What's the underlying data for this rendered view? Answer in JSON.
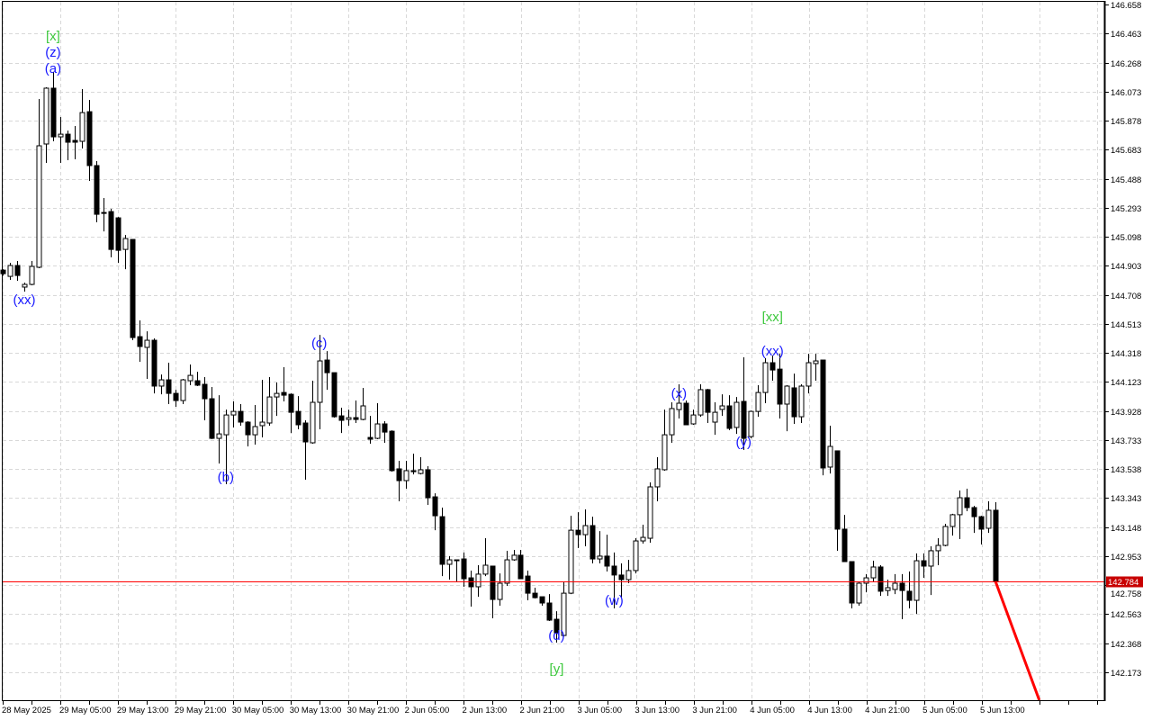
{
  "chart_data": {
    "type": "candlestick",
    "title": "",
    "grid": true,
    "colors": {
      "bull_body": "#ffffff",
      "bear_body": "#000000",
      "outline": "#000000",
      "grid": "#d8d8d8",
      "price_line": "#ff0000",
      "price_tag": "#c80000",
      "wave_label_blue": "#1a1aff",
      "wave_label_green": "#3cc83c",
      "forecast_line": "#ff0000"
    },
    "y_axis": {
      "position": "right",
      "range": [
        141.985,
        146.658
      ],
      "ticks": [
        "146.658",
        "146.463",
        "146.268",
        "146.073",
        "145.878",
        "145.683",
        "145.488",
        "145.293",
        "145.098",
        "144.903",
        "144.708",
        "144.513",
        "144.318",
        "144.123",
        "143.928",
        "143.733",
        "143.538",
        "143.343",
        "143.148",
        "142.953",
        "142.758",
        "142.563",
        "142.368",
        "142.173"
      ]
    },
    "x_axis": {
      "ticks": [
        {
          "bar": 0,
          "label": "28 May 2025"
        },
        {
          "bar": 8,
          "label": "29 May 05:00"
        },
        {
          "bar": 16,
          "label": "29 May 13:00"
        },
        {
          "bar": 24,
          "label": "29 May 21:00"
        },
        {
          "bar": 32,
          "label": "30 May 05:00"
        },
        {
          "bar": 40,
          "label": "30 May 13:00"
        },
        {
          "bar": 48,
          "label": "30 May 21:00"
        },
        {
          "bar": 56,
          "label": "2 Jun 05:00"
        },
        {
          "bar": 64,
          "label": "2 Jun 13:00"
        },
        {
          "bar": 72,
          "label": "2 Jun 21:00"
        },
        {
          "bar": 80,
          "label": "3 Jun 05:00"
        },
        {
          "bar": 88,
          "label": "3 Jun 13:00"
        },
        {
          "bar": 96,
          "label": "3 Jun 21:00"
        },
        {
          "bar": 104,
          "label": "4 Jun 05:00"
        },
        {
          "bar": 112,
          "label": "4 Jun 13:00"
        },
        {
          "bar": 120,
          "label": "4 Jun 21:00"
        },
        {
          "bar": 128,
          "label": "5 Jun 05:00"
        },
        {
          "bar": 136,
          "label": "5 Jun 13:00"
        }
      ]
    },
    "current_price": "142.784",
    "ohlc_fields": [
      "open",
      "high",
      "low",
      "close"
    ],
    "candles": [
      [
        144.874,
        144.88,
        144.838,
        144.85
      ],
      [
        144.832,
        144.923,
        144.808,
        144.905
      ],
      [
        144.905,
        144.935,
        144.802,
        144.838
      ],
      [
        144.76,
        144.79,
        144.73,
        144.778
      ],
      [
        144.778,
        144.935,
        144.772,
        144.899
      ],
      [
        144.893,
        146.023,
        144.887,
        145.709
      ],
      [
        145.721,
        146.102,
        145.594,
        146.096
      ],
      [
        146.096,
        146.204,
        145.739,
        145.769
      ],
      [
        145.769,
        145.902,
        145.594,
        145.787
      ],
      [
        145.787,
        145.811,
        145.612,
        145.733
      ],
      [
        145.745,
        145.842,
        145.618,
        145.733
      ],
      [
        145.739,
        146.09,
        145.691,
        145.932
      ],
      [
        145.938,
        146.017,
        145.473,
        145.576
      ],
      [
        145.576,
        145.606,
        145.195,
        145.249
      ],
      [
        145.255,
        145.358,
        145.134,
        145.261
      ],
      [
        145.267,
        145.286,
        144.96,
        145.013
      ],
      [
        145.225,
        145.231,
        144.923,
        145.007
      ],
      [
        145.013,
        145.11,
        144.88,
        145.086
      ],
      [
        145.08,
        145.08,
        144.403,
        144.421
      ],
      [
        144.427,
        144.536,
        144.258,
        144.361
      ],
      [
        144.355,
        144.463,
        144.143,
        144.403
      ],
      [
        144.403,
        144.415,
        144.046,
        144.095
      ],
      [
        144.095,
        144.173,
        144.04,
        144.137
      ],
      [
        144.137,
        144.252,
        143.974,
        144.046
      ],
      [
        144.046,
        144.07,
        143.956,
        143.998
      ],
      [
        143.998,
        144.143,
        143.974,
        144.137
      ],
      [
        144.131,
        144.24,
        144.101,
        144.167
      ],
      [
        144.131,
        144.191,
        144.095,
        144.101
      ],
      [
        144.107,
        144.155,
        143.865,
        144.01
      ],
      [
        144.01,
        144.089,
        143.738,
        143.744
      ],
      [
        143.744,
        144.034,
        143.575,
        143.774
      ],
      [
        143.768,
        143.937,
        143.436,
        143.901
      ],
      [
        143.901,
        143.992,
        143.817,
        143.925
      ],
      [
        143.925,
        143.974,
        143.829,
        143.853
      ],
      [
        143.853,
        143.859,
        143.69,
        143.768
      ],
      [
        143.768,
        143.968,
        143.702,
        143.823
      ],
      [
        143.829,
        144.137,
        143.75,
        143.853
      ],
      [
        143.847,
        144.155,
        143.829,
        144.022
      ],
      [
        144.022,
        144.119,
        143.895,
        144.046
      ],
      [
        144.052,
        144.222,
        143.992,
        144.034
      ],
      [
        144.04,
        144.046,
        143.78,
        143.919
      ],
      [
        143.925,
        144.028,
        143.805,
        143.835
      ],
      [
        143.847,
        143.865,
        143.466,
        143.72
      ],
      [
        143.714,
        144.131,
        143.708,
        143.986
      ],
      [
        143.986,
        144.439,
        143.805,
        144.264
      ],
      [
        144.27,
        144.33,
        144.07,
        144.185
      ],
      [
        144.185,
        144.185,
        143.883,
        143.889
      ],
      [
        143.895,
        143.95,
        143.78,
        143.865
      ],
      [
        143.871,
        143.937,
        143.829,
        143.883
      ],
      [
        143.883,
        143.998,
        143.847,
        143.871
      ],
      [
        143.871,
        144.083,
        143.865,
        143.962
      ],
      [
        143.75,
        143.895,
        143.708,
        143.738
      ],
      [
        143.744,
        143.98,
        143.738,
        143.841
      ],
      [
        143.841,
        143.859,
        143.714,
        143.786
      ],
      [
        143.792,
        143.798,
        143.52,
        143.527
      ],
      [
        143.539,
        143.593,
        143.321,
        143.46
      ],
      [
        143.46,
        143.593,
        143.406,
        143.527
      ],
      [
        143.527,
        143.641,
        143.502,
        143.52
      ],
      [
        143.508,
        143.617,
        143.502,
        143.533
      ],
      [
        143.533,
        143.557,
        143.297,
        143.345
      ],
      [
        143.351,
        143.375,
        143.127,
        143.224
      ],
      [
        143.218,
        143.279,
        142.819,
        142.898
      ],
      [
        142.898,
        142.953,
        142.795,
        142.928
      ],
      [
        142.928,
        142.928,
        142.777,
        142.922
      ],
      [
        142.934,
        142.977,
        142.747,
        142.801
      ],
      [
        142.807,
        142.856,
        142.614,
        142.747
      ],
      [
        142.747,
        142.892,
        142.68,
        142.832
      ],
      [
        142.832,
        143.073,
        142.819,
        142.892
      ],
      [
        142.886,
        142.886,
        142.535,
        142.662
      ],
      [
        142.662,
        142.837,
        142.62,
        142.771
      ],
      [
        142.771,
        142.989,
        142.753,
        142.928
      ],
      [
        142.928,
        142.995,
        142.922,
        142.959
      ],
      [
        142.959,
        142.995,
        142.801,
        142.801
      ],
      [
        142.819,
        142.856,
        142.656,
        142.704
      ],
      [
        142.704,
        142.741,
        142.668,
        142.674
      ],
      [
        142.68,
        142.68,
        142.62,
        142.638
      ],
      [
        142.638,
        142.698,
        142.517,
        142.523
      ],
      [
        142.529,
        142.583,
        142.372,
        142.438
      ],
      [
        142.42,
        142.783,
        142.414,
        142.704
      ],
      [
        142.704,
        143.224,
        142.698,
        143.127
      ],
      [
        143.127,
        143.248,
        143.007,
        143.097
      ],
      [
        143.097,
        143.267,
        143.019,
        143.158
      ],
      [
        143.158,
        143.218,
        142.904,
        142.934
      ],
      [
        142.934,
        143.121,
        142.904,
        142.953
      ],
      [
        142.953,
        143.097,
        142.85,
        142.886
      ],
      [
        142.886,
        142.977,
        142.602,
        142.826
      ],
      [
        142.826,
        142.904,
        142.674,
        142.795
      ],
      [
        142.795,
        142.928,
        142.771,
        142.856
      ],
      [
        142.856,
        143.073,
        142.837,
        143.055
      ],
      [
        143.055,
        143.164,
        143.037,
        143.079
      ],
      [
        143.073,
        143.448,
        143.043,
        143.418
      ],
      [
        143.418,
        143.617,
        143.321,
        143.539
      ],
      [
        143.533,
        143.937,
        143.527,
        143.768
      ],
      [
        143.768,
        143.986,
        143.714,
        143.944
      ],
      [
        143.937,
        144.107,
        143.877,
        143.98
      ],
      [
        143.98,
        143.998,
        143.835,
        143.835
      ],
      [
        143.841,
        143.937,
        143.835,
        143.901
      ],
      [
        143.901,
        144.107,
        143.889,
        144.071
      ],
      [
        144.071,
        144.077,
        143.847,
        143.919
      ],
      [
        143.853,
        143.986,
        143.768,
        143.919
      ],
      [
        143.938,
        144.04,
        143.895,
        143.962
      ],
      [
        143.962,
        144.034,
        143.799,
        143.811
      ],
      [
        143.817,
        144.022,
        143.774,
        143.986
      ],
      [
        143.992,
        144.288,
        143.666,
        143.744
      ],
      [
        143.756,
        143.931,
        143.744,
        143.925
      ],
      [
        143.925,
        144.101,
        143.889,
        144.052
      ],
      [
        144.052,
        144.282,
        143.98,
        144.252
      ],
      [
        144.252,
        144.3,
        144.131,
        144.203
      ],
      [
        144.209,
        144.312,
        143.877,
        143.974
      ],
      [
        143.974,
        144.101,
        143.792,
        144.095
      ],
      [
        144.083,
        144.179,
        143.841,
        143.889
      ],
      [
        143.889,
        144.107,
        143.847,
        144.095
      ],
      [
        144.095,
        144.312,
        144.046,
        144.252
      ],
      [
        144.246,
        144.312,
        144.131,
        144.264
      ],
      [
        144.27,
        144.27,
        143.496,
        143.545
      ],
      [
        143.551,
        143.829,
        143.508,
        143.69
      ],
      [
        143.66,
        143.66,
        142.989,
        143.134
      ],
      [
        143.134,
        143.23,
        142.916,
        142.916
      ],
      [
        142.916,
        142.916,
        142.602,
        142.638
      ],
      [
        142.638,
        142.783,
        142.62,
        142.771
      ],
      [
        142.771,
        142.832,
        142.71,
        142.807
      ],
      [
        142.807,
        142.922,
        142.777,
        142.88
      ],
      [
        142.88,
        142.892,
        142.686,
        142.717
      ],
      [
        142.722,
        142.795,
        142.686,
        142.741
      ],
      [
        142.729,
        142.832,
        142.698,
        142.771
      ],
      [
        142.771,
        142.832,
        142.529,
        142.722
      ],
      [
        142.717,
        142.85,
        142.602,
        142.656
      ],
      [
        142.656,
        142.971,
        142.565,
        142.922
      ],
      [
        142.922,
        142.971,
        142.807,
        142.886
      ],
      [
        142.886,
        143.019,
        142.692,
        142.989
      ],
      [
        142.989,
        143.073,
        142.892,
        143.025
      ],
      [
        143.025,
        143.17,
        143.019,
        143.152
      ],
      [
        143.152,
        143.237,
        143.091,
        143.231
      ],
      [
        143.231,
        143.394,
        143.067,
        143.345
      ],
      [
        143.345,
        143.406,
        143.255,
        143.279
      ],
      [
        143.279,
        143.291,
        143.109,
        143.218
      ],
      [
        143.218,
        143.224,
        143.031,
        143.134
      ],
      [
        143.14,
        143.321,
        143.109,
        143.261
      ],
      [
        143.261,
        143.315,
        142.777,
        142.784
      ]
    ],
    "forecast_line": {
      "from": {
        "bar": 138,
        "price": 142.784
      },
      "to": {
        "bar": 144.1,
        "price": 141.985
      }
    },
    "annotations": [
      {
        "text": "[x]",
        "bar": 7,
        "price": 146.446,
        "color": "green"
      },
      {
        "text": "(z)",
        "bar": 7,
        "price": 146.337,
        "color": "blue"
      },
      {
        "text": "(a)",
        "bar": 7,
        "price": 146.229,
        "color": "blue"
      },
      {
        "text": "(xx)",
        "bar": 3,
        "price": 144.675,
        "color": "blue"
      },
      {
        "text": "(b)",
        "bar": 31,
        "price": 143.484,
        "color": "blue"
      },
      {
        "text": "(c)",
        "bar": 44,
        "price": 144.385,
        "color": "blue"
      },
      {
        "text": "(d)",
        "bar": 77,
        "price": 142.42,
        "color": "blue"
      },
      {
        "text": "[y]",
        "bar": 77,
        "price": 142.197,
        "color": "green"
      },
      {
        "text": "(w)",
        "bar": 85,
        "price": 142.656,
        "color": "blue"
      },
      {
        "text": "(x)",
        "bar": 94,
        "price": 144.046,
        "color": "blue"
      },
      {
        "text": "(y)",
        "bar": 103,
        "price": 143.72,
        "color": "blue"
      },
      {
        "text": "(xx)",
        "bar": 107,
        "price": 144.33,
        "color": "blue"
      },
      {
        "text": "[xx]",
        "bar": 107,
        "price": 144.56,
        "color": "green"
      }
    ]
  }
}
